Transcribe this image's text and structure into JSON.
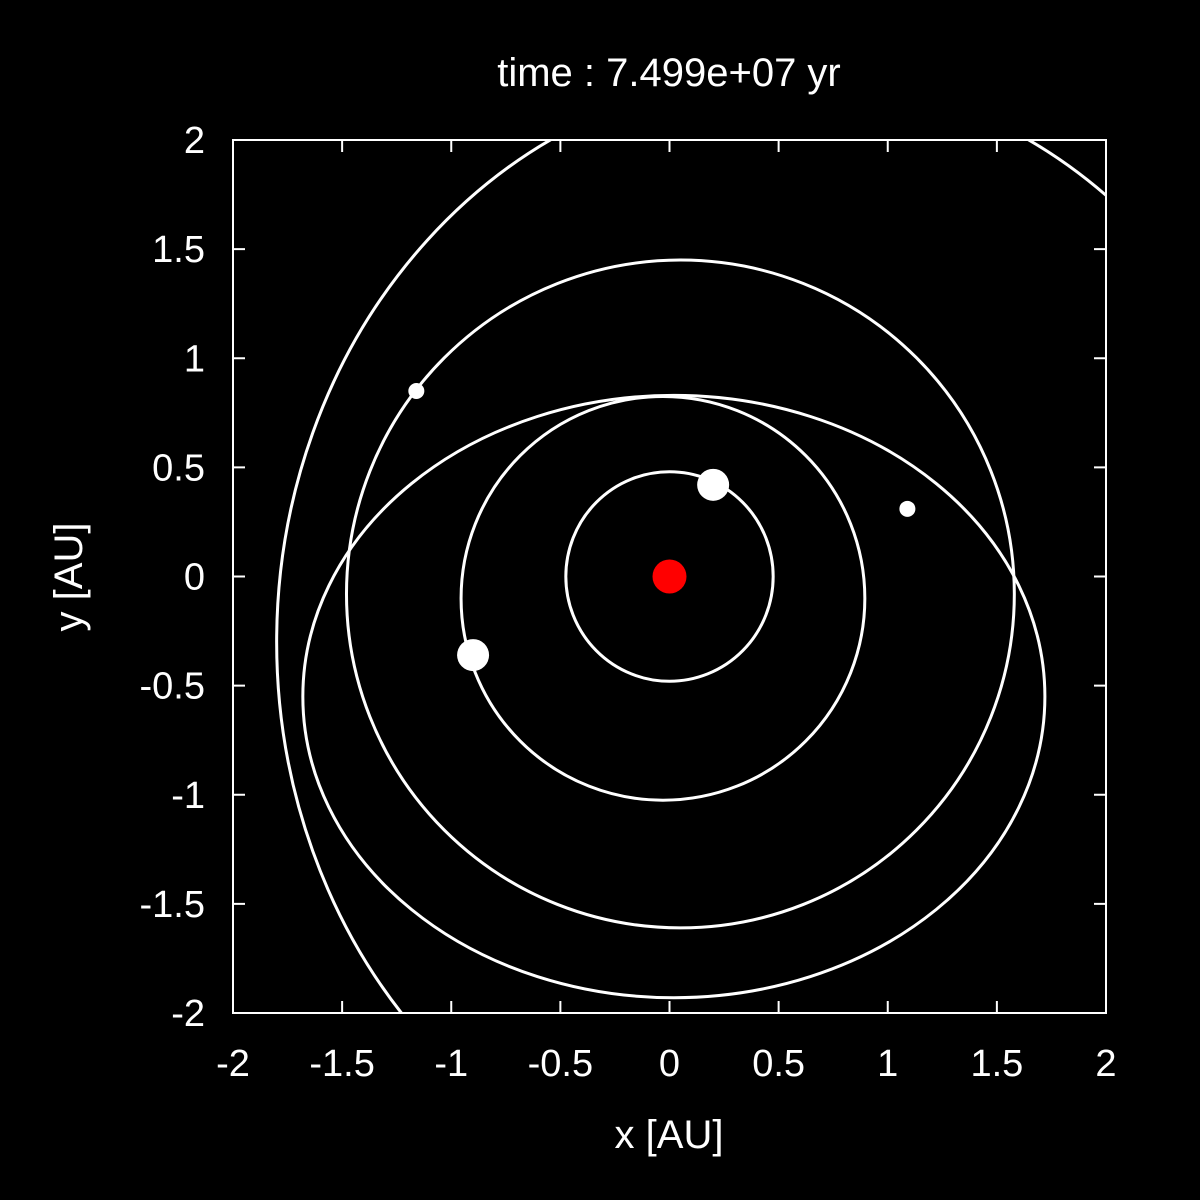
{
  "chart_data": {
    "type": "scatter",
    "title": "time : 7.499e+07 yr",
    "xlabel": "x [AU]",
    "ylabel": "y [AU]",
    "xlim": [
      -2,
      2
    ],
    "ylim": [
      -2,
      2
    ],
    "xticks": [
      "-2",
      "-1.5",
      "-1",
      "-0.5",
      "0",
      "0.5",
      "1",
      "1.5",
      "2"
    ],
    "yticks": [
      "2",
      "1.5",
      "1",
      "0.5",
      "0",
      "-0.5",
      "-1",
      "-1.5",
      "-2"
    ],
    "grid": false,
    "colors": {
      "background": "#000000",
      "foreground": "#ffffff",
      "star": "#ff0000"
    },
    "star": {
      "x": 0.0,
      "y": 0.0
    },
    "orbits": [
      {
        "cx": 0.0,
        "cy": 0.0,
        "rx": 0.475,
        "ry": 0.48
      },
      {
        "cx": -0.03,
        "cy": -0.1,
        "rx": 0.925,
        "ry": 0.925
      },
      {
        "cx": 0.05,
        "cy": -0.08,
        "rx": 1.53,
        "ry": 1.53
      },
      {
        "cx": 0.02,
        "cy": -0.55,
        "rx": 1.7,
        "ry": 1.38
      },
      {
        "cx": 0.55,
        "cy": -0.3,
        "rx": 2.35,
        "ry": 2.6
      }
    ],
    "planets": [
      {
        "x": 0.2,
        "y": 0.42,
        "size": "large"
      },
      {
        "x": -0.9,
        "y": -0.36,
        "size": "large"
      },
      {
        "x": -1.16,
        "y": 0.85,
        "size": "small"
      },
      {
        "x": 1.09,
        "y": 0.31,
        "size": "small"
      }
    ]
  }
}
